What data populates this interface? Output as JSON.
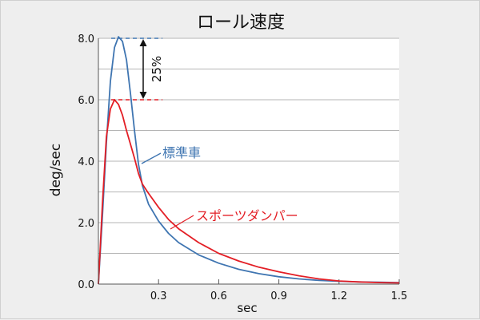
{
  "chart_data": {
    "type": "line",
    "title": "ロール速度",
    "xlabel": "sec",
    "ylabel": "deg/sec",
    "xlim": [
      0,
      1.5
    ],
    "ylim": [
      0,
      8.0
    ],
    "x_ticks": [
      "0.3",
      "0.6",
      "0.9",
      "1.2",
      "1.5"
    ],
    "y_ticks": [
      "0.0",
      "2.0",
      "4.0",
      "6.0",
      "8.0"
    ],
    "grid": "horizontal",
    "series": [
      {
        "name": "標準車",
        "color": "#3f75b1",
        "points": [
          [
            0,
            0
          ],
          [
            0.02,
            2.2
          ],
          [
            0.04,
            4.6
          ],
          [
            0.06,
            6.6
          ],
          [
            0.08,
            7.7
          ],
          [
            0.1,
            8.05
          ],
          [
            0.12,
            7.9
          ],
          [
            0.14,
            7.3
          ],
          [
            0.16,
            6.2
          ],
          [
            0.18,
            5.0
          ],
          [
            0.2,
            3.9
          ],
          [
            0.22,
            3.2
          ],
          [
            0.25,
            2.6
          ],
          [
            0.3,
            2.05
          ],
          [
            0.35,
            1.65
          ],
          [
            0.4,
            1.35
          ],
          [
            0.5,
            0.95
          ],
          [
            0.6,
            0.68
          ],
          [
            0.7,
            0.48
          ],
          [
            0.8,
            0.34
          ],
          [
            0.9,
            0.24
          ],
          [
            1.0,
            0.17
          ],
          [
            1.1,
            0.12
          ],
          [
            1.2,
            0.09
          ],
          [
            1.3,
            0.07
          ],
          [
            1.4,
            0.06
          ],
          [
            1.5,
            0.05
          ]
        ]
      },
      {
        "name": "スポーツダンパー",
        "color": "#e31e25",
        "points": [
          [
            0,
            0
          ],
          [
            0.02,
            2.6
          ],
          [
            0.04,
            4.8
          ],
          [
            0.06,
            5.7
          ],
          [
            0.08,
            6.0
          ],
          [
            0.1,
            5.85
          ],
          [
            0.12,
            5.5
          ],
          [
            0.14,
            5.0
          ],
          [
            0.16,
            4.55
          ],
          [
            0.18,
            4.1
          ],
          [
            0.2,
            3.6
          ],
          [
            0.22,
            3.25
          ],
          [
            0.25,
            2.95
          ],
          [
            0.3,
            2.5
          ],
          [
            0.35,
            2.1
          ],
          [
            0.4,
            1.8
          ],
          [
            0.5,
            1.35
          ],
          [
            0.6,
            1.0
          ],
          [
            0.7,
            0.75
          ],
          [
            0.8,
            0.55
          ],
          [
            0.9,
            0.4
          ],
          [
            1.0,
            0.27
          ],
          [
            1.1,
            0.17
          ],
          [
            1.2,
            0.1
          ],
          [
            1.3,
            0.07
          ],
          [
            1.4,
            0.05
          ],
          [
            1.5,
            0.04
          ]
        ]
      }
    ],
    "annotations": {
      "difference_label": "25%",
      "peak_values": [
        8.0,
        6.0
      ]
    }
  }
}
